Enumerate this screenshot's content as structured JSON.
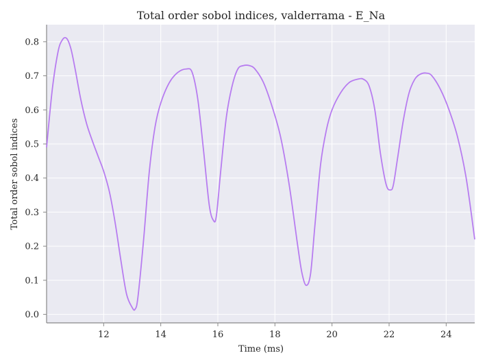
{
  "chart_data": {
    "type": "line",
    "title": "Total order sobol indices, valderrama - E_Na",
    "xlabel": "Time (ms)",
    "ylabel": "Total order sobol indices",
    "xlim": [
      10.0,
      25.0
    ],
    "ylim": [
      -0.025,
      0.85
    ],
    "xticks": [
      12,
      14,
      16,
      18,
      20,
      22,
      24
    ],
    "yticks": [
      0.0,
      0.1,
      0.2,
      0.3,
      0.4,
      0.5,
      0.6,
      0.7,
      0.8
    ],
    "grid": true,
    "colors": {
      "plot_background": "#eaeaf2",
      "grid": "#ffffff",
      "line": "#b77cf0",
      "axis": "#888888"
    },
    "series": [
      {
        "color": "#b77cf0",
        "x": [
          10.0,
          10.2,
          10.4,
          10.55,
          10.7,
          10.85,
          11.0,
          11.2,
          11.4,
          11.6,
          11.8,
          12.0,
          12.2,
          12.4,
          12.6,
          12.8,
          13.0,
          13.1,
          13.2,
          13.4,
          13.6,
          13.8,
          14.0,
          14.3,
          14.6,
          14.9,
          15.1,
          15.3,
          15.5,
          15.7,
          15.85,
          15.95,
          16.1,
          16.3,
          16.5,
          16.7,
          16.9,
          17.1,
          17.3,
          17.6,
          17.9,
          18.2,
          18.5,
          18.8,
          18.95,
          19.1,
          19.25,
          19.4,
          19.6,
          19.8,
          20.0,
          20.3,
          20.6,
          20.9,
          21.1,
          21.3,
          21.5,
          21.7,
          21.9,
          22.05,
          22.15,
          22.3,
          22.5,
          22.7,
          22.9,
          23.1,
          23.3,
          23.5,
          23.8,
          24.1,
          24.4,
          24.7,
          25.0
        ],
        "y": [
          0.49,
          0.66,
          0.77,
          0.805,
          0.81,
          0.78,
          0.72,
          0.63,
          0.56,
          0.51,
          0.465,
          0.42,
          0.36,
          0.27,
          0.16,
          0.06,
          0.02,
          0.015,
          0.05,
          0.22,
          0.42,
          0.55,
          0.62,
          0.68,
          0.71,
          0.72,
          0.71,
          0.63,
          0.48,
          0.32,
          0.275,
          0.29,
          0.42,
          0.58,
          0.67,
          0.72,
          0.73,
          0.73,
          0.72,
          0.68,
          0.61,
          0.52,
          0.38,
          0.2,
          0.12,
          0.085,
          0.12,
          0.26,
          0.44,
          0.54,
          0.6,
          0.65,
          0.68,
          0.69,
          0.69,
          0.67,
          0.6,
          0.47,
          0.38,
          0.365,
          0.38,
          0.46,
          0.57,
          0.65,
          0.69,
          0.705,
          0.708,
          0.7,
          0.66,
          0.6,
          0.52,
          0.4,
          0.22
        ]
      }
    ]
  }
}
